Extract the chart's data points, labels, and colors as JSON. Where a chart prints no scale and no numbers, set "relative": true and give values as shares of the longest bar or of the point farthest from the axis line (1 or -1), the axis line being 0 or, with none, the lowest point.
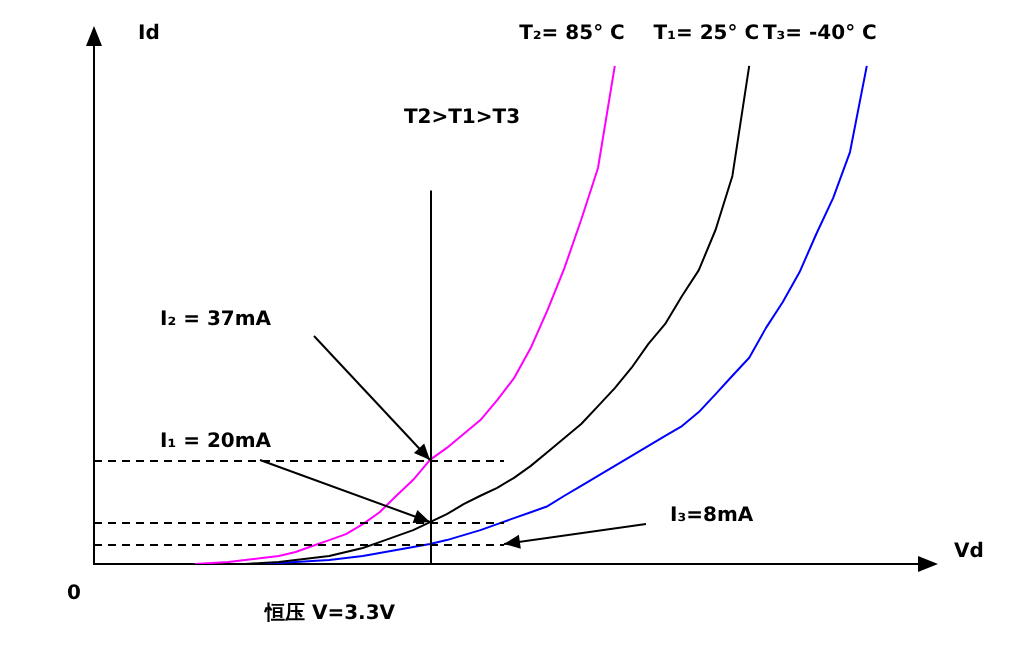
{
  "chart_data": {
    "type": "line",
    "relative": true,
    "xlabel": "Vd",
    "ylabel": "Id",
    "grid": false,
    "legend": false,
    "marker": "none",
    "line_style": "solid",
    "categories": [
      null,
      null,
      null,
      null,
      null,
      null,
      null,
      null,
      null,
      null,
      null,
      null,
      null,
      null,
      null,
      null,
      null,
      null,
      null,
      null,
      null,
      null,
      null,
      null,
      null,
      null,
      null,
      null,
      null,
      null,
      null,
      null,
      null,
      null,
      null,
      null,
      null,
      null,
      null,
      null,
      null,
      null,
      null,
      null,
      null,
      null,
      null,
      null,
      null,
      null,
      null
    ],
    "series": [
      {
        "name": "T₂= 85° C",
        "color": "#ff00ff",
        "values": [
          null,
          null,
          null,
          null,
          null,
          null,
          0,
          0.002,
          0.004,
          0.008,
          0.012,
          0.016,
          0.024,
          0.036,
          0.048,
          0.06,
          0.08,
          0.104,
          0.137,
          0.169,
          0.209,
          0.233,
          0.261,
          0.289,
          0.329,
          0.373,
          0.434,
          0.51,
          0.594,
          0.691,
          0.795,
          1,
          null,
          null,
          null,
          null,
          null,
          null,
          null,
          null,
          null,
          null,
          null,
          null,
          null,
          null,
          null,
          null,
          null,
          null,
          null
        ]
      },
      {
        "name": "T₁= 25° C",
        "color": "#000000",
        "values": [
          null,
          null,
          null,
          null,
          null,
          null,
          null,
          null,
          null,
          0,
          0.002,
          0.004,
          0.008,
          0.012,
          0.016,
          0.024,
          0.032,
          0.044,
          0.056,
          0.068,
          0.084,
          0.1,
          0.12,
          0.137,
          0.153,
          0.173,
          0.197,
          0.225,
          0.253,
          0.281,
          0.317,
          0.353,
          0.394,
          0.442,
          0.482,
          0.538,
          0.59,
          0.671,
          0.779,
          1,
          null,
          null,
          null,
          null,
          null,
          null,
          null,
          null,
          null,
          null,
          null
        ]
      },
      {
        "name": "T₃= -40° C",
        "color": "#0000ff",
        "values": [
          null,
          null,
          null,
          null,
          null,
          null,
          null,
          null,
          null,
          null,
          0,
          0.002,
          0.004,
          0.006,
          0.008,
          0.012,
          0.016,
          0.022,
          0.028,
          0.034,
          0.04,
          0.048,
          0.058,
          0.068,
          0.08,
          0.092,
          0.104,
          0.116,
          0.137,
          0.157,
          0.177,
          0.197,
          0.217,
          0.237,
          0.257,
          0.277,
          0.305,
          0.341,
          0.378,
          0.414,
          0.474,
          0.526,
          0.586,
          0.663,
          0.735,
          0.827,
          1,
          null,
          null,
          null,
          null
        ]
      }
    ],
    "ref_lines": [
      {
        "axis": "y",
        "value": 0.209,
        "line_style": "dashed",
        "color": "#000000"
      },
      {
        "axis": "y",
        "value": 0.084,
        "line_style": "dashed",
        "color": "#000000"
      },
      {
        "axis": "y",
        "value": 0.04,
        "line_style": "dashed",
        "color": "#000000"
      }
    ],
    "annotations": [
      "T2>T1>T3",
      "0",
      "恒压 V=3.3V",
      "I₂ = 37mA",
      "I₁ = 20mA",
      "I₃=8mA"
    ]
  }
}
